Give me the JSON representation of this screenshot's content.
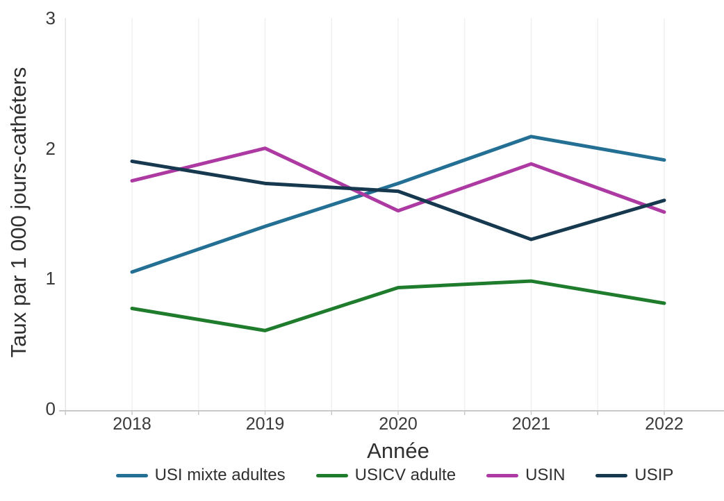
{
  "chart_data": {
    "type": "line",
    "title": "",
    "xlabel": "Année",
    "ylabel": "Taux par 1 000 jours-cathéters",
    "categories": [
      "2018",
      "2019",
      "2020",
      "2021",
      "2022"
    ],
    "series": [
      {
        "name": "USI mixte adultes",
        "color": "#246f94",
        "values": [
          1.05,
          1.4,
          1.73,
          2.09,
          1.91
        ]
      },
      {
        "name": "USICV adulte",
        "color": "#1f7c2c",
        "values": [
          0.77,
          0.6,
          0.93,
          0.98,
          0.81
        ]
      },
      {
        "name": "USIN",
        "color": "#ad3aa2",
        "values": [
          1.75,
          2.0,
          1.52,
          1.88,
          1.51
        ]
      },
      {
        "name": "USIP",
        "color": "#16394f",
        "values": [
          1.9,
          1.73,
          1.67,
          1.3,
          1.6
        ]
      }
    ],
    "ylim": [
      0,
      3
    ],
    "ytick_labels": [
      "3",
      "2",
      "1",
      "0"
    ],
    "grid": "vertical, half-year spacing, no horizontal gridlines",
    "legend_position": "bottom",
    "colors": {
      "grid": "#f0f0f0",
      "axis_line": "#c9c9c9",
      "y_axis_line": "#e4e4e4",
      "tick_text": "#3a3a3a",
      "title_text": "#2f2f2f"
    }
  }
}
